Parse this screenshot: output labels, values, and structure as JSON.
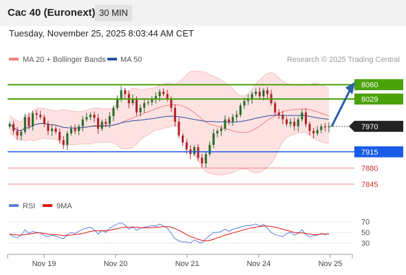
{
  "header": {
    "title": "Cac 40 (Euronext)",
    "interval": "30 MIN"
  },
  "timestamp": "Tuesday, November 25, 2025 8:03:44 AM CET",
  "attribution": "Research © 2025 Trading Central",
  "colors": {
    "resistance": "#4aa10a",
    "support": "#1a5ce8",
    "support_light": "#f08080",
    "bollinger": "#f5a0a0",
    "ma50": "#2b4f9e",
    "rsi": "#5b7fd8",
    "rsi_ma": "#e01010",
    "up": "#2b6b2b",
    "down": "#b0252b",
    "arrow": "#2b5fa8"
  },
  "chart_data": [
    {
      "type": "candlestick",
      "legend": [
        {
          "name": "MA 20 + Bollinger Bands",
          "color": "#f08080"
        },
        {
          "name": "MA 50",
          "color": "#2b4f9e"
        }
      ],
      "x_labels": [
        "Nov 19",
        "Nov 20",
        "Nov 21",
        "Nov 24",
        "Nov 25"
      ],
      "y_range": [
        7830,
        8090
      ],
      "levels": [
        {
          "value": 8060,
          "label": "8060",
          "kind": "resistance"
        },
        {
          "value": 8029,
          "label": "8029",
          "kind": "resistance"
        },
        {
          "value": 7970,
          "label": "7970",
          "kind": "current"
        },
        {
          "value": 7915,
          "label": "7915",
          "kind": "support"
        },
        {
          "value": 7880,
          "label": "7880",
          "kind": "support_light"
        },
        {
          "value": 7845,
          "label": "7845",
          "kind": "support_light"
        }
      ],
      "arrow": {
        "from": 7970,
        "to": 8060
      },
      "closes": [
        7975,
        7960,
        7950,
        7958,
        7990,
        7970,
        7998,
        7995,
        7990,
        7975,
        7960,
        7965,
        7958,
        7940,
        7930,
        7955,
        7965,
        7960,
        7970,
        7985,
        7990,
        7995,
        7988,
        7965,
        7980,
        7975,
        7992,
        8010,
        8030,
        8048,
        8040,
        8020,
        8030,
        8000,
        8010,
        8020,
        8022,
        8028,
        8035,
        8045,
        8040,
        8030,
        8010,
        7980,
        7950,
        7935,
        7920,
        7910,
        7925,
        7902,
        7890,
        7910,
        7930,
        7955,
        7960,
        7965,
        7985,
        7980,
        7990,
        7995,
        8015,
        8025,
        8030,
        8040,
        8045,
        8035,
        8048,
        8040,
        8020,
        8000,
        7995,
        7985,
        7975,
        7980,
        7970,
        7985,
        8000,
        7975,
        7960,
        7955,
        7962,
        7970,
        7968,
        7970
      ]
    },
    {
      "type": "line",
      "legend": [
        {
          "name": "RSI",
          "color": "#5b7fd8"
        },
        {
          "name": "9MA",
          "color": "#e01010"
        }
      ],
      "y_ticks": [
        70,
        50,
        30
      ],
      "y_range": [
        15,
        80
      ],
      "rsi": [
        46,
        42,
        40,
        45,
        55,
        48,
        52,
        50,
        49,
        44,
        42,
        45,
        43,
        40,
        38,
        46,
        50,
        48,
        52,
        56,
        58,
        60,
        55,
        47,
        54,
        50,
        58,
        62,
        66,
        68,
        64,
        56,
        60,
        54,
        58,
        60,
        61,
        63,
        62,
        66,
        62,
        58,
        48,
        38,
        34,
        32,
        32,
        30,
        36,
        32,
        30,
        38,
        44,
        50,
        50,
        52,
        56,
        52,
        56,
        58,
        60,
        62,
        63,
        64,
        66,
        62,
        65,
        58,
        50,
        46,
        44,
        42,
        48,
        50,
        45,
        48,
        55,
        46,
        42,
        44,
        45,
        48,
        46,
        48
      ],
      "rsi_ma": [
        47,
        46,
        45,
        45,
        46,
        47,
        48,
        49,
        49,
        48,
        47,
        46,
        46,
        45,
        44,
        44,
        45,
        46,
        47,
        48,
        50,
        52,
        53,
        53,
        53,
        53,
        54,
        56,
        57,
        59,
        60,
        60,
        60,
        60,
        59,
        59,
        59,
        59,
        60,
        60,
        61,
        61,
        60,
        57,
        54,
        50,
        46,
        42,
        40,
        37,
        35,
        34,
        35,
        37,
        40,
        42,
        45,
        47,
        49,
        51,
        53,
        55,
        57,
        59,
        60,
        61,
        62,
        62,
        61,
        60,
        58,
        56,
        54,
        52,
        50,
        49,
        49,
        48,
        47,
        46,
        46,
        47,
        47,
        47
      ]
    }
  ]
}
